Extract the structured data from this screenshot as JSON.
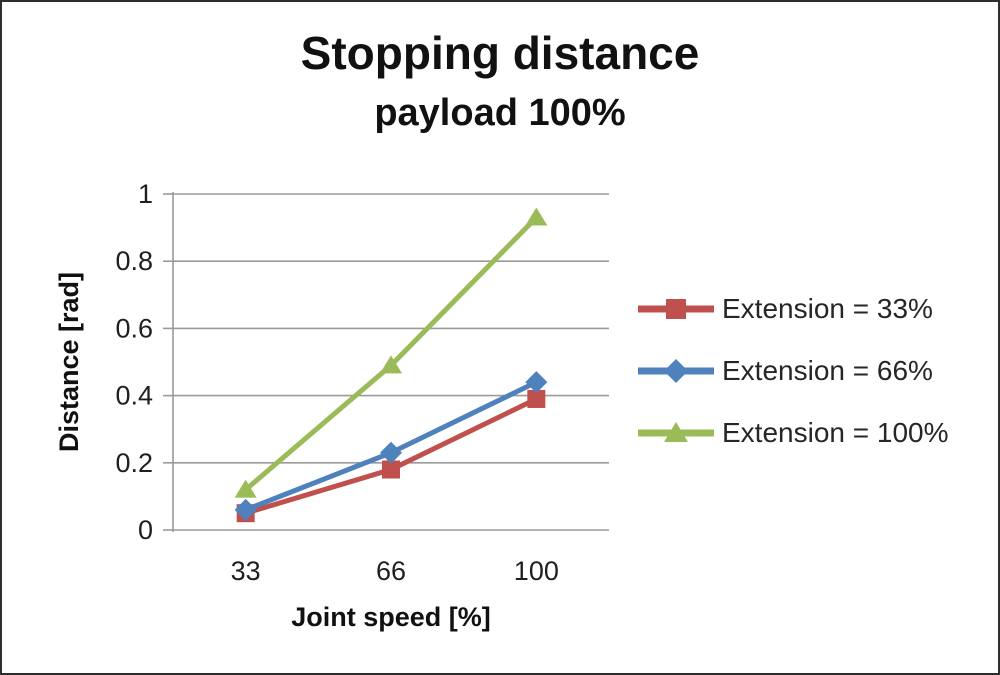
{
  "frame": {
    "border_color": "#2e2e2e",
    "background": "#ffffff"
  },
  "chart_data": {
    "type": "line",
    "title": "Stopping distance",
    "subtitle": "payload 100%",
    "xlabel": "Joint speed [%]",
    "ylabel": "Distance [rad]",
    "categories": [
      "33",
      "66",
      "100"
    ],
    "ylim": [
      0,
      1
    ],
    "yticks": [
      0,
      0.2,
      0.4,
      0.6,
      0.8,
      1
    ],
    "grid": true,
    "legend_position": "right",
    "series": [
      {
        "name": "Extension = 33%",
        "marker": "square",
        "color": "#c0504d",
        "values": [
          0.05,
          0.18,
          0.39
        ]
      },
      {
        "name": "Extension = 66%",
        "marker": "diamond",
        "color": "#4f81bd",
        "values": [
          0.06,
          0.23,
          0.44
        ]
      },
      {
        "name": "Extension = 100%",
        "marker": "triangle",
        "color": "#9bbb59",
        "values": [
          0.12,
          0.49,
          0.93
        ]
      }
    ],
    "colors": {
      "gridline": "#9a9a9a",
      "axis_text": "#1f1f1f",
      "title_text": "#111111"
    }
  }
}
